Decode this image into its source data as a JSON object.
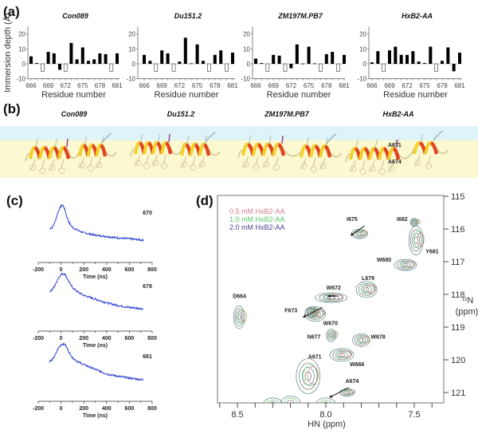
{
  "panel_labels": {
    "a": "(a)",
    "b": "(b)",
    "c": "(c)",
    "d": "(d)"
  },
  "structures": {
    "titles": [
      "Con089",
      "Du151.2",
      "ZM197M.PB7",
      "HxB2-AA"
    ],
    "annotations": [
      "A671",
      "A674"
    ]
  },
  "chart_data": [
    {
      "type": "bar",
      "title": "Con089",
      "xlabel": "Residue number",
      "ylabel": "Immersion depth (Å)",
      "ylim": [
        -10,
        25
      ],
      "yticks": [
        "20",
        "10",
        "0",
        "-10"
      ],
      "xticks": [
        "666",
        "669",
        "672",
        "675",
        "678",
        "681"
      ],
      "categories": [
        666,
        667,
        668,
        669,
        670,
        671,
        672,
        673,
        674,
        675,
        676,
        677,
        678,
        679,
        680,
        681
      ],
      "values": [
        5,
        0.5,
        -5,
        8,
        7,
        -4,
        -5,
        14,
        3,
        11,
        2,
        3,
        7,
        6.5,
        -5,
        7
      ],
      "open_bars": [
        668,
        672,
        680
      ]
    },
    {
      "type": "bar",
      "title": "Du151.2",
      "xlabel": "Residue number",
      "ylim": [
        -10,
        25
      ],
      "yticks": [
        "20",
        "10",
        "0",
        "-10"
      ],
      "xticks": [
        "666",
        "669",
        "672",
        "675",
        "678",
        "681"
      ],
      "categories": [
        666,
        667,
        668,
        669,
        670,
        671,
        672,
        673,
        674,
        675,
        676,
        677,
        678,
        679,
        680,
        681
      ],
      "values": [
        6,
        2,
        -5,
        9,
        7,
        -5,
        1.5,
        17.5,
        0.3,
        13,
        2,
        -5,
        6,
        9,
        -5,
        7.5
      ],
      "open_bars": [
        668,
        671,
        677,
        680
      ]
    },
    {
      "type": "bar",
      "title": "ZM197M.PB7",
      "xlabel": "Residue number",
      "ylim": [
        -10,
        25
      ],
      "yticks": [
        "20",
        "10",
        "0",
        "-10"
      ],
      "xticks": [
        "666",
        "669",
        "672",
        "675",
        "678",
        "681"
      ],
      "categories": [
        666,
        667,
        668,
        669,
        670,
        671,
        672,
        673,
        674,
        675,
        676,
        677,
        678,
        679,
        680,
        681
      ],
      "values": [
        3.5,
        0.5,
        -5,
        6,
        5.5,
        -5,
        -3,
        13,
        0.2,
        11.5,
        0.3,
        -5,
        6.5,
        8,
        -5,
        6
      ],
      "open_bars": [
        668,
        671,
        677,
        680
      ]
    },
    {
      "type": "bar",
      "title": "HxB2-AA",
      "xlabel": "Residue number",
      "ylim": [
        -10,
        25
      ],
      "yticks": [
        "20",
        "10",
        "0",
        "-10"
      ],
      "xticks": [
        "666",
        "669",
        "672",
        "675",
        "678",
        "681"
      ],
      "categories": [
        666,
        667,
        668,
        669,
        670,
        671,
        672,
        673,
        674,
        675,
        676,
        677,
        678,
        679,
        680,
        681
      ],
      "values": [
        1,
        8.5,
        -5,
        9,
        11.5,
        6,
        6,
        8.5,
        1.5,
        0.5,
        11.5,
        -5,
        2,
        11,
        -5,
        7.5
      ],
      "open_bars": [
        668,
        677
      ]
    },
    {
      "type": "line",
      "title": "670",
      "xlabel": "Time (ns)",
      "xlim": [
        -200,
        800
      ],
      "xticks": [
        "-200",
        "0",
        "200",
        "400",
        "600",
        "800"
      ],
      "x": [
        -100,
        -75,
        -50,
        -25,
        0,
        15,
        30,
        50,
        75,
        100,
        150,
        200,
        300,
        400,
        500,
        600,
        725
      ],
      "y": [
        0.49,
        0.52,
        0.66,
        0.86,
        0.98,
        1.0,
        0.93,
        0.75,
        0.6,
        0.52,
        0.45,
        0.4,
        0.35,
        0.32,
        0.29,
        0.27,
        0.24
      ]
    },
    {
      "type": "line",
      "title": "678",
      "xlabel": "Time (ns)",
      "xlim": [
        -200,
        800
      ],
      "xticks": [
        "-200",
        "0",
        "200",
        "400",
        "600",
        "800"
      ],
      "x": [
        -100,
        -75,
        -50,
        -25,
        0,
        15,
        35,
        50,
        75,
        100,
        150,
        200,
        300,
        400,
        500,
        600,
        725
      ],
      "y": [
        0.61,
        0.66,
        0.76,
        0.9,
        0.98,
        1.0,
        0.99,
        0.92,
        0.8,
        0.7,
        0.6,
        0.53,
        0.45,
        0.37,
        0.31,
        0.27,
        0.24
      ]
    },
    {
      "type": "line",
      "title": "681",
      "xlabel": "Time (ns)",
      "xlim": [
        -200,
        800
      ],
      "xticks": [
        "-200",
        "0",
        "200",
        "400",
        "600",
        "800"
      ],
      "x": [
        -100,
        -75,
        -50,
        -25,
        0,
        15,
        35,
        50,
        75,
        100,
        150,
        200,
        300,
        400,
        500,
        600,
        725
      ],
      "y": [
        0.62,
        0.66,
        0.76,
        0.9,
        0.98,
        1.0,
        0.99,
        0.92,
        0.8,
        0.7,
        0.61,
        0.55,
        0.45,
        0.35,
        0.3,
        0.26,
        0.22
      ]
    },
    {
      "type": "scatter",
      "title": "",
      "xlabel": "HN (ppm)",
      "ylabel_sup": "15",
      "ylabel": "N",
      "ylabel_unit": "(ppm)",
      "xlim": [
        8.61,
        7.33
      ],
      "ylim": [
        114.98,
        121.35
      ],
      "xticks": [
        "8.5",
        "8.0",
        "7.5"
      ],
      "yticks": [
        "115",
        "116",
        "117",
        "118",
        "119",
        "120",
        "121"
      ],
      "legend": [
        {
          "label": "0.5 mM HxB2-AA",
          "color": "#cf7f8a"
        },
        {
          "label": "1.0 mM HxB2-AA",
          "color": "#58c864"
        },
        {
          "label": "2.0 mM HxB2-AA",
          "color": "#4a3d8f"
        }
      ],
      "peaks": [
        {
          "label": "D664",
          "hn": 8.49,
          "n": 118.7
        },
        {
          "label": "F673",
          "hn": 8.08,
          "n": 118.55
        },
        {
          "label": "W670",
          "hn": 8.06,
          "n": 118.6
        },
        {
          "label": "W672",
          "hn": 7.97,
          "n": 118.1
        },
        {
          "label": "L679",
          "hn": 7.77,
          "n": 117.85
        },
        {
          "label": "I675",
          "hn": 7.81,
          "n": 116.15
        },
        {
          "label": "I682",
          "hn": 7.5,
          "n": 115.8
        },
        {
          "label": "Y681",
          "hn": 7.49,
          "n": 116.35
        },
        {
          "label": "W680",
          "hn": 7.55,
          "n": 117.1
        },
        {
          "label": "N677",
          "hn": 7.97,
          "n": 119.25
        },
        {
          "label": "W678",
          "hn": 7.8,
          "n": 119.4
        },
        {
          "label": "W666",
          "hn": 7.91,
          "n": 119.85
        },
        {
          "label": "A671",
          "hn": 8.1,
          "n": 120.5
        },
        {
          "label": "A674",
          "hn": 7.88,
          "n": 121.0
        }
      ]
    }
  ]
}
